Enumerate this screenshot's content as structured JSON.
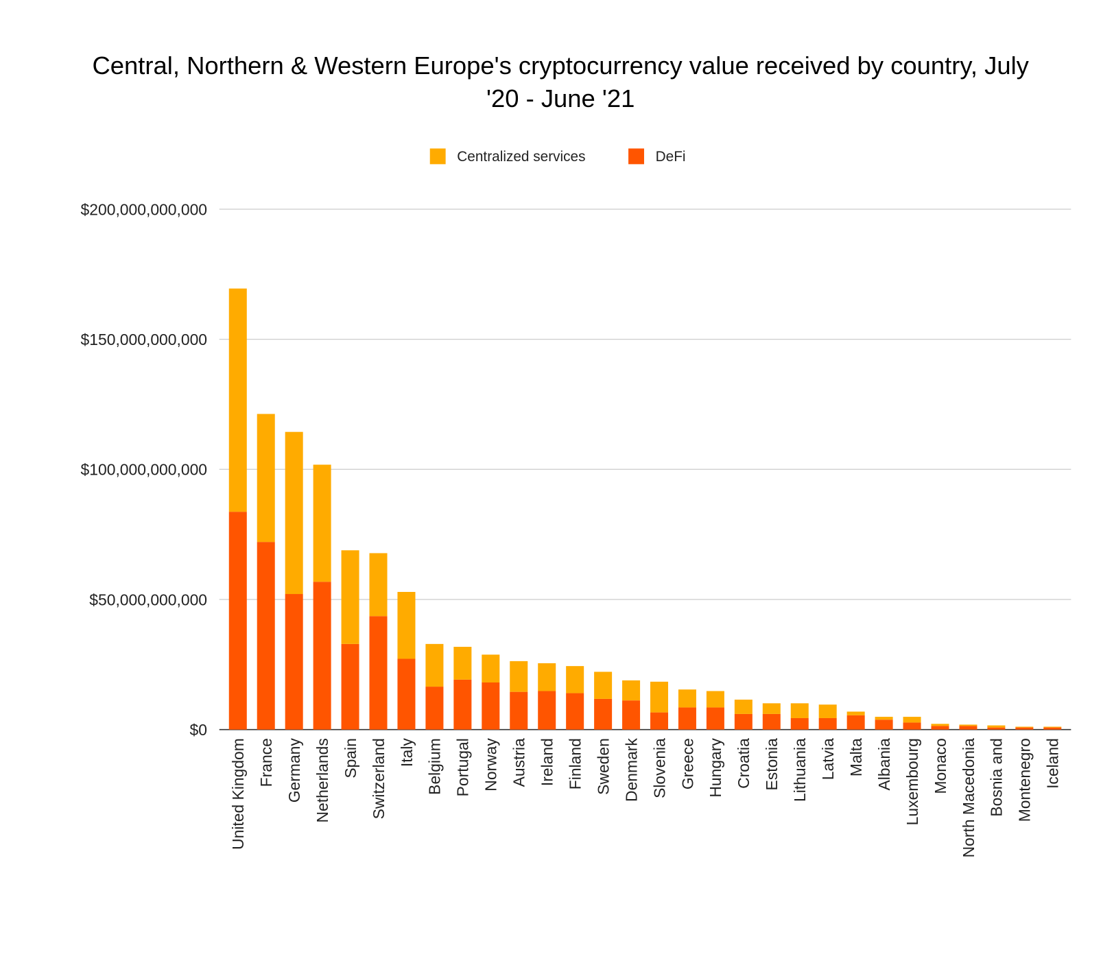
{
  "chart_data": {
    "type": "bar",
    "stacked": true,
    "title_lines": [
      "Central, Northern & Western Europe's cryptocurrency value received by country, July",
      "'20 - June '21"
    ],
    "xlabel": "",
    "ylabel": "",
    "ylim": [
      0,
      200000000000
    ],
    "yticks": [
      0,
      50000000000,
      100000000000,
      150000000000,
      200000000000
    ],
    "ytick_labels": [
      "$0",
      "$50,000,000,000",
      "$100,000,000,000",
      "$150,000,000,000",
      "$200,000,000,000"
    ],
    "grid": true,
    "legend_position": "top-center",
    "categories": [
      "United Kingdom",
      "France",
      "Germany",
      "Netherlands",
      "Spain",
      "Switzerland",
      "Italy",
      "Belgium",
      "Portugal",
      "Norway",
      "Austria",
      "Ireland",
      "Finland",
      "Sweden",
      "Denmark",
      "Slovenia",
      "Greece",
      "Hungary",
      "Croatia",
      "Estonia",
      "Lithuania",
      "Latvia",
      "Malta",
      "Albania",
      "Luxembourg",
      "Monaco",
      "North Macedonia",
      "Bosnia and",
      "Montenegro",
      "Iceland"
    ],
    "series": [
      {
        "name": "DeFi",
        "color": "#FF5500",
        "values": [
          83.7,
          72.1,
          52.1,
          56.8,
          32.9,
          43.6,
          27.2,
          16.5,
          19.2,
          18.1,
          14.5,
          14.8,
          14.0,
          11.8,
          11.2,
          6.6,
          8.5,
          8.5,
          6.0,
          6.0,
          4.4,
          4.4,
          5.5,
          3.8,
          2.7,
          1.4,
          1.4,
          0.8,
          0.8,
          0.8
        ]
      },
      {
        "name": "Centralized services",
        "color": "#FFAB00",
        "values": [
          85.8,
          49.2,
          62.3,
          45.0,
          36.0,
          24.2,
          25.7,
          16.4,
          12.6,
          10.7,
          11.8,
          10.7,
          10.4,
          10.4,
          7.7,
          11.8,
          6.9,
          6.3,
          5.5,
          4.1,
          5.7,
          5.2,
          1.4,
          1.1,
          2.2,
          0.8,
          0.5,
          0.8,
          0.3,
          0.3
        ]
      }
    ],
    "value_unit": "billion USD",
    "legend": [
      "Centralized services",
      "DeFi"
    ]
  }
}
